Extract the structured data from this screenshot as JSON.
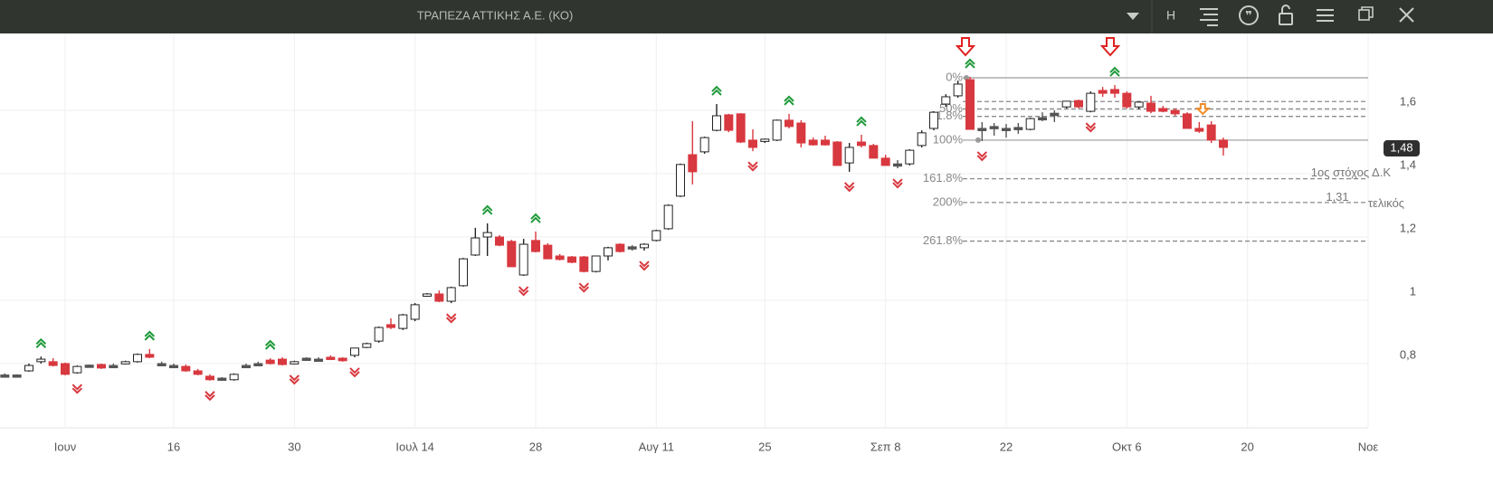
{
  "toolbar": {
    "title": "ΤΡΑΠΕΖΑ ΑΤΤΙΚΗΣ Α.Ε. (ΚΟ)",
    "mode": "H"
  },
  "chart_data": {
    "type": "candlestick",
    "open": [
      0.76,
      0.761,
      0.777,
      0.806,
      0.806,
      0.8,
      0.771,
      0.794,
      0.797,
      0.794,
      0.8,
      0.806,
      0.829,
      0.8,
      0.794,
      0.791,
      0.777,
      0.76,
      0.754,
      0.749,
      0.791,
      0.8,
      0.811,
      0.814,
      0.8,
      0.811,
      0.814,
      0.82,
      0.817,
      0.826,
      0.851,
      0.871,
      0.923,
      0.911,
      0.94,
      1.014,
      1.02,
      0.997,
      1.046,
      1.143,
      1.2,
      1.2,
      1.186,
      1.08,
      1.189,
      1.174,
      1.14,
      1.137,
      1.137,
      1.091,
      1.14,
      1.177,
      1.166,
      1.166,
      1.189,
      1.226,
      1.329,
      1.46,
      1.469,
      1.537,
      1.586,
      1.589,
      1.506,
      1.503,
      1.506,
      1.569,
      1.56,
      1.506,
      1.506,
      1.5,
      1.434,
      1.5,
      1.489,
      1.449,
      1.431,
      1.431,
      1.489,
      1.543,
      1.62,
      1.646,
      1.697,
      1.543,
      1.549,
      1.543,
      1.546,
      1.54,
      1.574,
      1.589,
      1.611,
      1.631,
      1.597,
      1.663,
      1.666,
      1.654,
      1.611,
      1.623,
      1.606,
      1.6,
      1.589,
      1.543,
      1.554,
      1.506
    ],
    "high": [
      0.769,
      0.766,
      0.8,
      0.822,
      0.817,
      0.803,
      0.794,
      0.797,
      0.8,
      0.8,
      0.809,
      0.832,
      0.846,
      0.806,
      0.8,
      0.797,
      0.783,
      0.766,
      0.757,
      0.769,
      0.8,
      0.806,
      0.817,
      0.82,
      0.809,
      0.82,
      0.82,
      0.826,
      0.82,
      0.849,
      0.866,
      0.917,
      0.943,
      0.957,
      0.991,
      1.023,
      1.031,
      1.043,
      1.134,
      1.229,
      1.243,
      1.206,
      1.191,
      1.194,
      1.217,
      1.18,
      1.146,
      1.14,
      1.14,
      1.14,
      1.169,
      1.18,
      1.174,
      1.18,
      1.223,
      1.303,
      1.432,
      1.566,
      1.517,
      1.62,
      1.589,
      1.591,
      1.54,
      1.511,
      1.571,
      1.589,
      1.569,
      1.514,
      1.52,
      1.503,
      1.497,
      1.523,
      1.494,
      1.46,
      1.443,
      1.477,
      1.537,
      1.597,
      1.651,
      1.694,
      1.706,
      1.563,
      1.56,
      1.557,
      1.56,
      1.577,
      1.594,
      1.6,
      1.629,
      1.634,
      1.66,
      1.674,
      1.68,
      1.66,
      1.629,
      1.646,
      1.614,
      1.606,
      1.594,
      1.563,
      1.566,
      1.514
    ],
    "low": [
      0.757,
      0.757,
      0.774,
      0.8,
      0.791,
      0.763,
      0.768,
      0.789,
      0.783,
      0.789,
      0.797,
      0.803,
      0.817,
      0.794,
      0.791,
      0.774,
      0.763,
      0.746,
      0.746,
      0.746,
      0.789,
      0.797,
      0.797,
      0.794,
      0.797,
      0.809,
      0.811,
      0.811,
      0.806,
      0.82,
      0.849,
      0.866,
      0.909,
      0.906,
      0.934,
      1.011,
      0.994,
      0.991,
      1.043,
      1.14,
      1.14,
      1.171,
      1.106,
      1.077,
      1.151,
      1.131,
      1.126,
      1.117,
      1.088,
      1.088,
      1.126,
      1.151,
      1.157,
      1.157,
      1.186,
      1.223,
      1.326,
      1.366,
      1.463,
      1.534,
      1.531,
      1.497,
      1.471,
      1.497,
      1.503,
      1.543,
      1.483,
      1.489,
      1.489,
      1.426,
      1.406,
      1.483,
      1.449,
      1.426,
      1.417,
      1.426,
      1.483,
      1.537,
      1.611,
      1.64,
      1.54,
      1.503,
      1.52,
      1.514,
      1.526,
      1.537,
      1.566,
      1.563,
      1.606,
      1.606,
      1.594,
      1.643,
      1.64,
      1.606,
      1.603,
      1.591,
      1.594,
      1.583,
      1.543,
      1.529,
      1.497,
      1.457
    ],
    "close": [
      0.764,
      0.764,
      0.794,
      0.814,
      0.794,
      0.766,
      0.791,
      0.795,
      0.786,
      0.794,
      0.806,
      0.829,
      0.82,
      0.797,
      0.794,
      0.777,
      0.766,
      0.749,
      0.749,
      0.766,
      0.794,
      0.8,
      0.8,
      0.797,
      0.806,
      0.817,
      0.814,
      0.814,
      0.809,
      0.849,
      0.863,
      0.914,
      0.914,
      0.954,
      0.986,
      1.02,
      0.997,
      1.04,
      1.131,
      1.197,
      1.214,
      1.174,
      1.106,
      1.177,
      1.154,
      1.131,
      1.129,
      1.12,
      1.091,
      1.14,
      1.166,
      1.154,
      1.169,
      1.177,
      1.22,
      1.3,
      1.429,
      1.406,
      1.514,
      1.583,
      1.537,
      1.5,
      1.483,
      1.509,
      1.569,
      1.549,
      1.497,
      1.491,
      1.491,
      1.426,
      1.483,
      1.489,
      1.449,
      1.426,
      1.431,
      1.474,
      1.529,
      1.594,
      1.643,
      1.683,
      1.54,
      1.54,
      1.546,
      1.543,
      1.546,
      1.574,
      1.577,
      1.591,
      1.629,
      1.611,
      1.654,
      1.654,
      1.654,
      1.611,
      1.626,
      1.597,
      1.597,
      1.589,
      1.543,
      1.534,
      1.506,
      1.483
    ],
    "colors": {
      "up": "#ffffff",
      "down": "#d8383f",
      "flat": "#555555"
    },
    "xlim": [
      -0.4,
      113
    ],
    "xticks": [
      {
        "value": 5,
        "label": "Ιουν"
      },
      {
        "value": 14,
        "label": "16"
      },
      {
        "value": 24,
        "label": "30"
      },
      {
        "value": 34,
        "label": "Ιουλ 14"
      },
      {
        "value": 44,
        "label": "28"
      },
      {
        "value": 54,
        "label": "Αυγ 11"
      },
      {
        "value": 63,
        "label": "25"
      },
      {
        "value": 73,
        "label": "Σεπ 8"
      },
      {
        "value": 83,
        "label": "22"
      },
      {
        "value": 93,
        "label": "Οκτ 6"
      },
      {
        "value": 103,
        "label": "20"
      },
      {
        "value": 113,
        "label": "Νοε"
      }
    ],
    "ylim": [
      0.597,
      1.843
    ],
    "yticks": [
      {
        "value": 0.8,
        "label": "0,8"
      },
      1,
      {
        "value": 1.2,
        "label": "1,2"
      },
      {
        "value": 1.4,
        "label": "1,4"
      },
      {
        "value": 1.6,
        "label": "1,6"
      }
    ],
    "grid": true,
    "fib_start": 79.4,
    "fib_levels": [
      {
        "value": 1.703,
        "label": "0%"
      },
      {
        "value": 1.628
      },
      {
        "value": 1.6045,
        "label": "50%"
      },
      {
        "value": 1.581,
        "label": "61.8%"
      },
      {
        "value": 1.506,
        "label": "100%"
      },
      {
        "value": 1.384,
        "label": "161.8%"
      },
      {
        "value": 1.309,
        "label": "200%"
      },
      {
        "value": 1.187,
        "label": "261.8%"
      }
    ],
    "target1_label": "1ος στόχος Δ.Κ",
    "target_final": {
      "value": 1.31,
      "label": "1,31"
    },
    "target_final_label": "τελικός",
    "last_price": {
      "value": 1.48,
      "label": "1,48"
    },
    "signals": {
      "up": [
        3,
        12,
        22,
        40,
        44,
        59,
        65,
        71,
        80,
        92
      ],
      "down": [
        6,
        17,
        24,
        29,
        37,
        43,
        48,
        53,
        62,
        70,
        74,
        81,
        90
      ],
      "alert": [
        80,
        92
      ],
      "exit": [
        99
      ]
    }
  }
}
